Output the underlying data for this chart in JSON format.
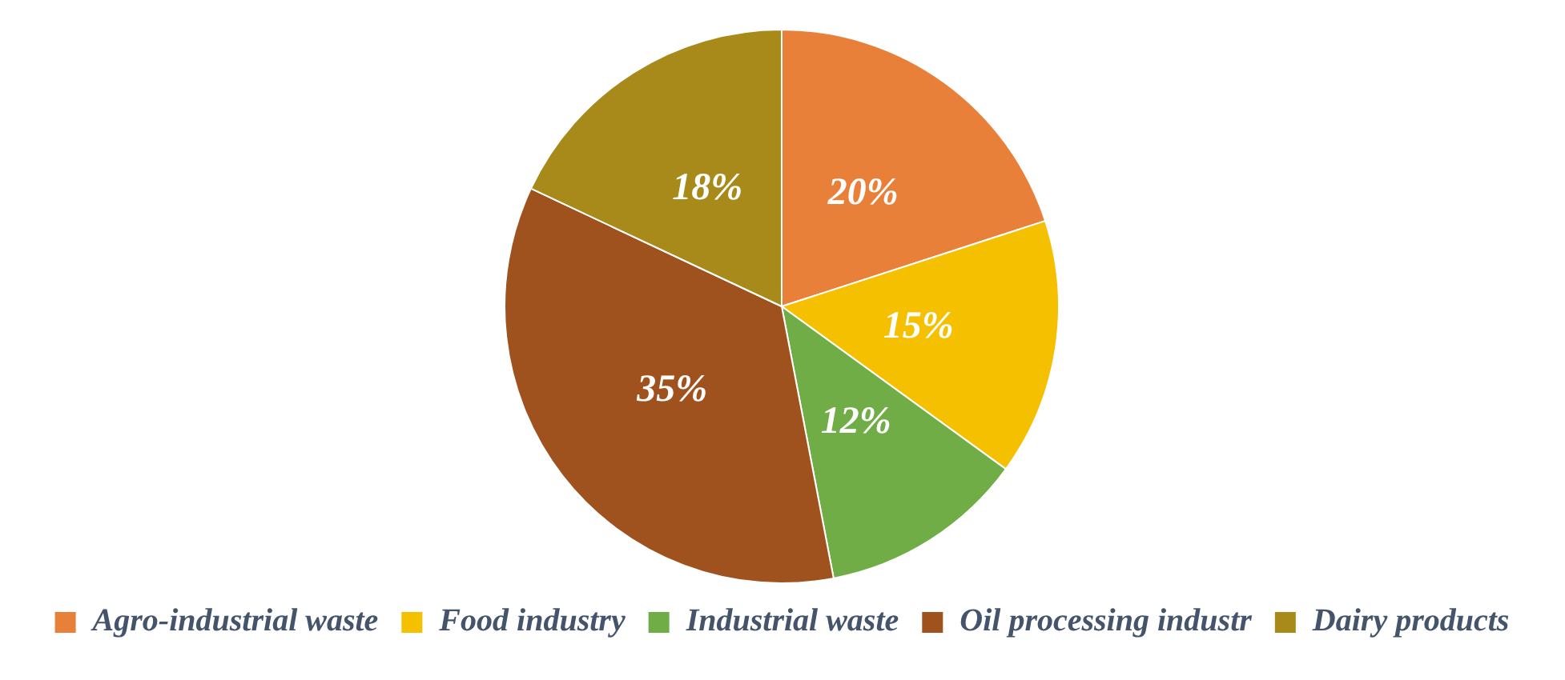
{
  "chart_data": {
    "type": "pie",
    "categories": [
      "Agro-industrial waste",
      "Food industry",
      "Industrial waste",
      "Oil processing industr",
      "Dairy products"
    ],
    "values": [
      20,
      15,
      12,
      35,
      18
    ],
    "colors": [
      "#e8803a",
      "#f5c000",
      "#70ad47",
      "#a0521e",
      "#a88a1a"
    ],
    "value_labels": [
      "20%",
      "15%",
      "12%",
      "35%",
      "18%"
    ],
    "legend": "bottom"
  }
}
